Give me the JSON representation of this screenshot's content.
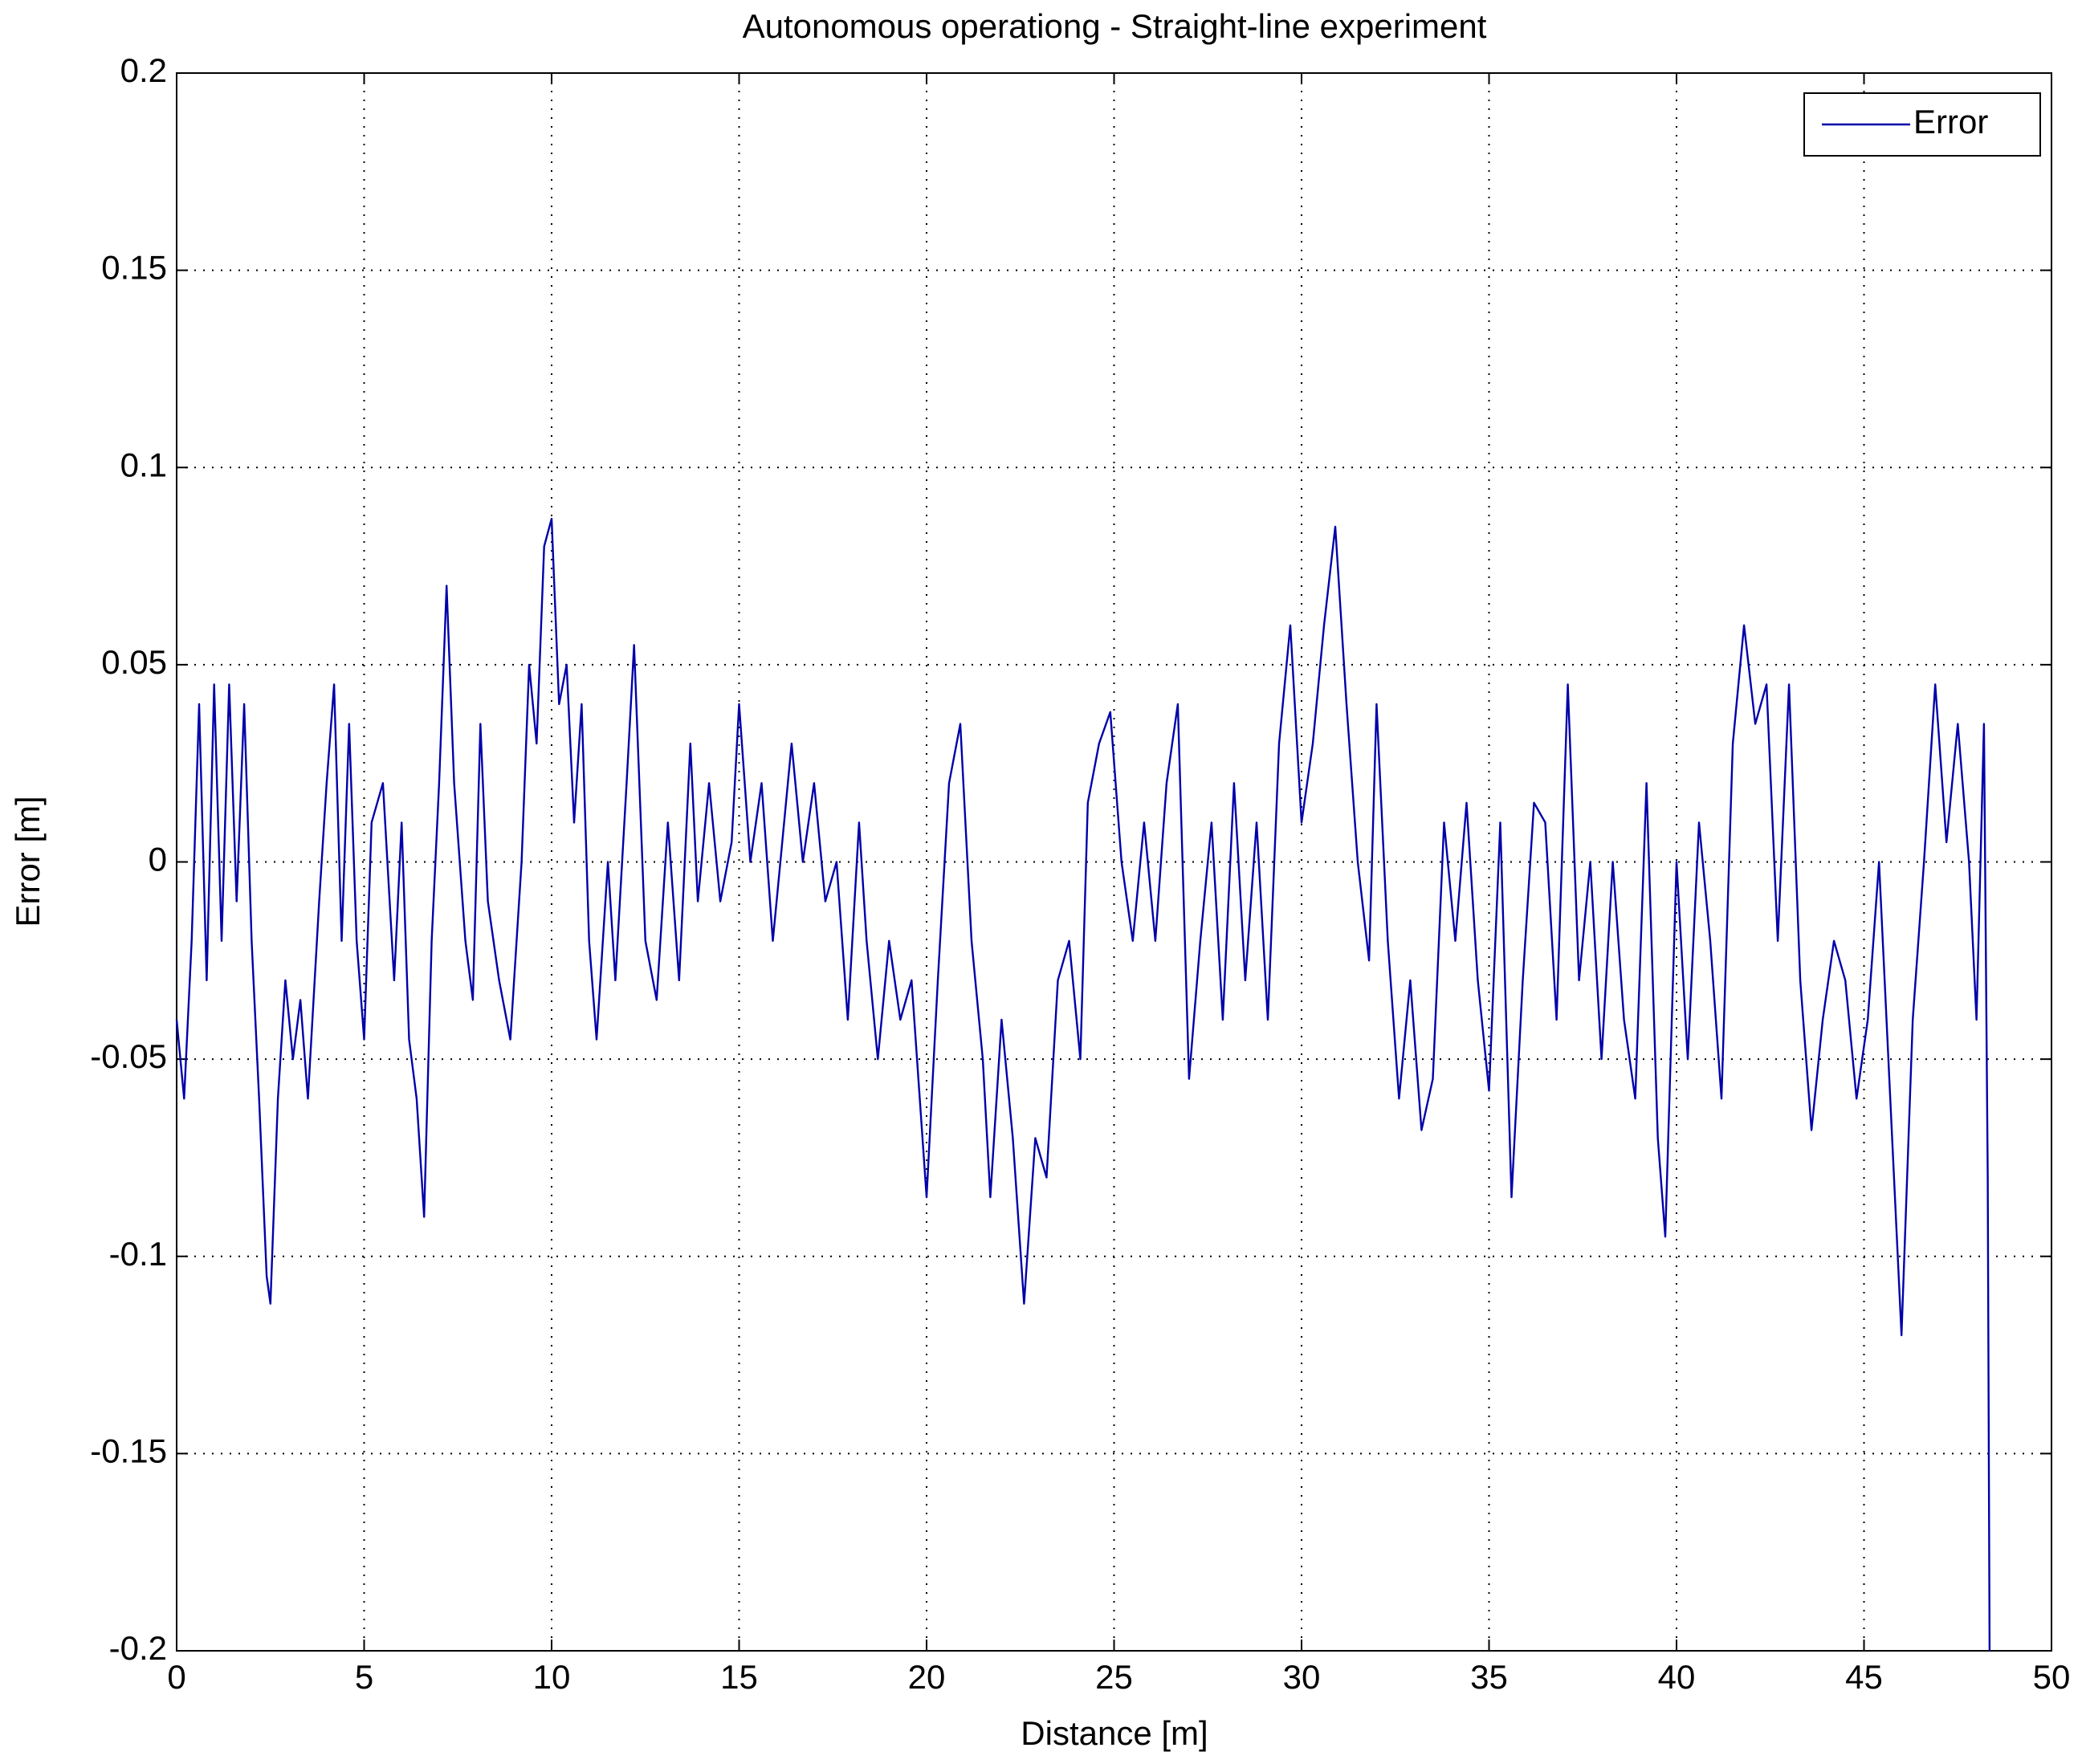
{
  "chart_data": {
    "type": "line",
    "title": "Autonomous operationg - Straight-line experiment",
    "xlabel": "Distance [m]",
    "ylabel": "Error [m]",
    "xlim": [
      0,
      50
    ],
    "xticks": [
      0,
      5,
      10,
      15,
      20,
      25,
      30,
      35,
      40,
      45,
      50
    ],
    "ylim": [
      -0.2,
      0.2
    ],
    "yticks": [
      -0.2,
      -0.15,
      -0.1,
      -0.05,
      0,
      0.05,
      0.1,
      0.15,
      0.2
    ],
    "grid": true,
    "legend": "northeast",
    "x": [
      0,
      0.2,
      0.4,
      0.6,
      0.8,
      1.0,
      1.2,
      1.4,
      1.6,
      1.8,
      2.0,
      2.2,
      2.4,
      2.5,
      2.7,
      2.9,
      3.1,
      3.3,
      3.5,
      3.8,
      4.0,
      4.2,
      4.4,
      4.6,
      4.8,
      5.0,
      5.2,
      5.5,
      5.8,
      6.0,
      6.2,
      6.4,
      6.6,
      6.8,
      7.0,
      7.2,
      7.4,
      7.7,
      7.9,
      8.1,
      8.3,
      8.6,
      8.9,
      9.2,
      9.4,
      9.6,
      9.8,
      10.0,
      10.2,
      10.4,
      10.6,
      10.8,
      11.0,
      11.2,
      11.5,
      11.7,
      12.0,
      12.2,
      12.5,
      12.8,
      13.1,
      13.4,
      13.7,
      13.9,
      14.2,
      14.5,
      14.8,
      15.0,
      15.3,
      15.6,
      15.9,
      16.1,
      16.4,
      16.7,
      17.0,
      17.3,
      17.6,
      17.9,
      18.2,
      18.4,
      18.7,
      19.0,
      19.3,
      19.6,
      20.0,
      20.3,
      20.6,
      20.9,
      21.2,
      21.5,
      21.7,
      22.0,
      22.3,
      22.6,
      22.9,
      23.2,
      23.5,
      23.8,
      24.1,
      24.3,
      24.6,
      24.9,
      25.2,
      25.5,
      25.8,
      26.1,
      26.4,
      26.7,
      27.0,
      27.3,
      27.6,
      27.9,
      28.2,
      28.5,
      28.8,
      29.1,
      29.4,
      29.7,
      30.0,
      30.3,
      30.6,
      30.9,
      31.2,
      31.5,
      31.8,
      32.0,
      32.3,
      32.6,
      32.9,
      33.2,
      33.5,
      33.8,
      34.1,
      34.4,
      34.7,
      35.0,
      35.3,
      35.6,
      35.9,
      36.2,
      36.5,
      36.8,
      37.1,
      37.4,
      37.7,
      38.0,
      38.3,
      38.6,
      38.9,
      39.2,
      39.5,
      39.7,
      40.0,
      40.3,
      40.6,
      40.9,
      41.2,
      41.5,
      41.8,
      42.1,
      42.4,
      42.7,
      43.0,
      43.3,
      43.6,
      43.9,
      44.2,
      44.5,
      44.8,
      45.1,
      45.4,
      45.7,
      46.0,
      46.3,
      46.6,
      46.9,
      47.2,
      47.5,
      47.8,
      48.0,
      48.2,
      48.3,
      48.35
    ],
    "series": [
      {
        "name": "Error",
        "color": "#0000aa",
        "values": [
          -0.04,
          -0.06,
          -0.02,
          0.04,
          -0.03,
          0.045,
          -0.02,
          0.045,
          -0.01,
          0.04,
          -0.02,
          -0.06,
          -0.105,
          -0.112,
          -0.06,
          -0.03,
          -0.05,
          -0.035,
          -0.06,
          -0.01,
          0.02,
          0.045,
          -0.02,
          0.035,
          -0.02,
          -0.045,
          0.01,
          0.02,
          -0.03,
          0.01,
          -0.045,
          -0.06,
          -0.09,
          -0.02,
          0.02,
          0.07,
          0.02,
          -0.02,
          -0.035,
          0.035,
          -0.01,
          -0.03,
          -0.045,
          0.0,
          0.05,
          0.03,
          0.08,
          0.087,
          0.04,
          0.05,
          0.01,
          0.04,
          -0.02,
          -0.045,
          0.0,
          -0.03,
          0.02,
          0.055,
          -0.02,
          -0.035,
          0.01,
          -0.03,
          0.03,
          -0.01,
          0.02,
          -0.01,
          0.005,
          0.04,
          0.0,
          0.02,
          -0.02,
          0.0,
          0.03,
          0.0,
          0.02,
          -0.01,
          0.0,
          -0.04,
          0.01,
          -0.02,
          -0.05,
          -0.02,
          -0.04,
          -0.03,
          -0.085,
          -0.03,
          0.02,
          0.035,
          -0.02,
          -0.05,
          -0.085,
          -0.04,
          -0.07,
          -0.112,
          -0.07,
          -0.08,
          -0.03,
          -0.02,
          -0.05,
          0.015,
          0.03,
          0.038,
          0.0,
          -0.02,
          0.01,
          -0.02,
          0.02,
          0.04,
          -0.055,
          -0.02,
          0.01,
          -0.04,
          0.02,
          -0.03,
          0.01,
          -0.04,
          0.03,
          0.06,
          0.01,
          0.03,
          0.06,
          0.085,
          0.04,
          0.0,
          -0.025,
          0.04,
          -0.02,
          -0.06,
          -0.03,
          -0.068,
          -0.055,
          0.01,
          -0.02,
          0.015,
          -0.03,
          -0.058,
          0.01,
          -0.085,
          -0.03,
          0.015,
          0.01,
          -0.04,
          0.045,
          -0.03,
          0.0,
          -0.05,
          0.0,
          -0.04,
          -0.06,
          0.02,
          -0.07,
          -0.095,
          0.0,
          -0.05,
          0.01,
          -0.02,
          -0.06,
          0.03,
          0.06,
          0.035,
          0.045,
          -0.02,
          0.045,
          -0.03,
          -0.068,
          -0.04,
          -0.02,
          -0.03,
          -0.06,
          -0.04,
          0.0,
          -0.06,
          -0.12,
          -0.04,
          0.0,
          0.045,
          0.005,
          0.035,
          0.0,
          -0.04,
          0.035,
          -0.08,
          -0.2
        ]
      }
    ]
  }
}
